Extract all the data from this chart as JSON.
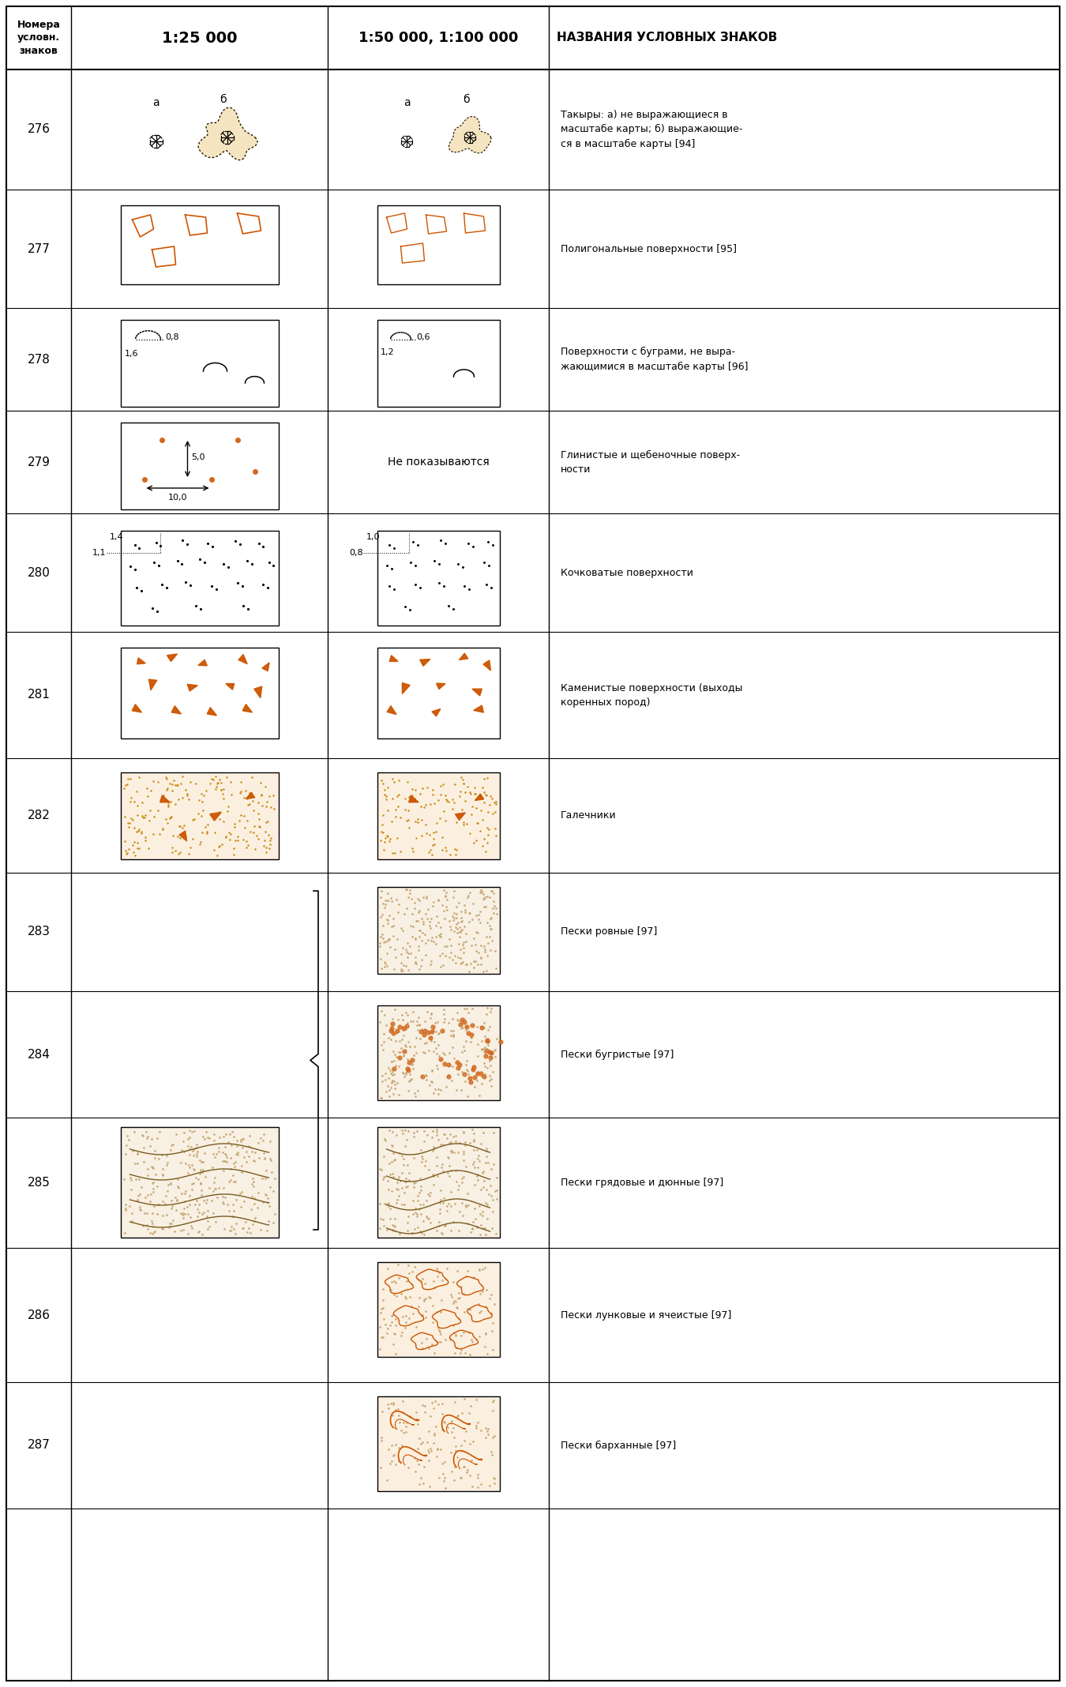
{
  "title_col1": "Номера\nусловн.\nзнаков",
  "title_col2": "1:25 000",
  "title_col3": "1:50 000, 1:100 000",
  "title_col4": "НАЗВАНИЯ УСЛОВНЫХ ЗНАКОВ",
  "rows": [
    {
      "num": "276",
      "desc": "Такыры: а) не выражающиеся в\nмасштабе карты; б) выражающие-\nся в масштабе карты 94"
    },
    {
      "num": "277",
      "desc": "Полигональные поверхности 95"
    },
    {
      "num": "278",
      "desc": "Поверхности с буграми, не выра-\nжающимися в масштабе карты 96"
    },
    {
      "num": "279",
      "desc": "Глинистые и щебеночные поверх-\nности"
    },
    {
      "num": "280",
      "desc": "Кочковатые поверхности"
    },
    {
      "num": "281",
      "desc": "Каменистые поверхности (выходы\nкоренных пород)"
    },
    {
      "num": "282",
      "desc": "Галечники"
    },
    {
      "num": "283",
      "desc": "Пески ровные 97"
    },
    {
      "num": "284",
      "desc": "Пески бугристые 97"
    },
    {
      "num": "285",
      "desc": "Пески грядовые и дюнные 97"
    },
    {
      "num": "286",
      "desc": "Пески лунковые и ячеистые 97"
    },
    {
      "num": "287",
      "desc": "Пески барханные 97"
    }
  ],
  "bg_color": "#ffffff",
  "orange": "#cc5500",
  "dot_orange": "#D2691E",
  "sand_fill": "#F5E8D0"
}
